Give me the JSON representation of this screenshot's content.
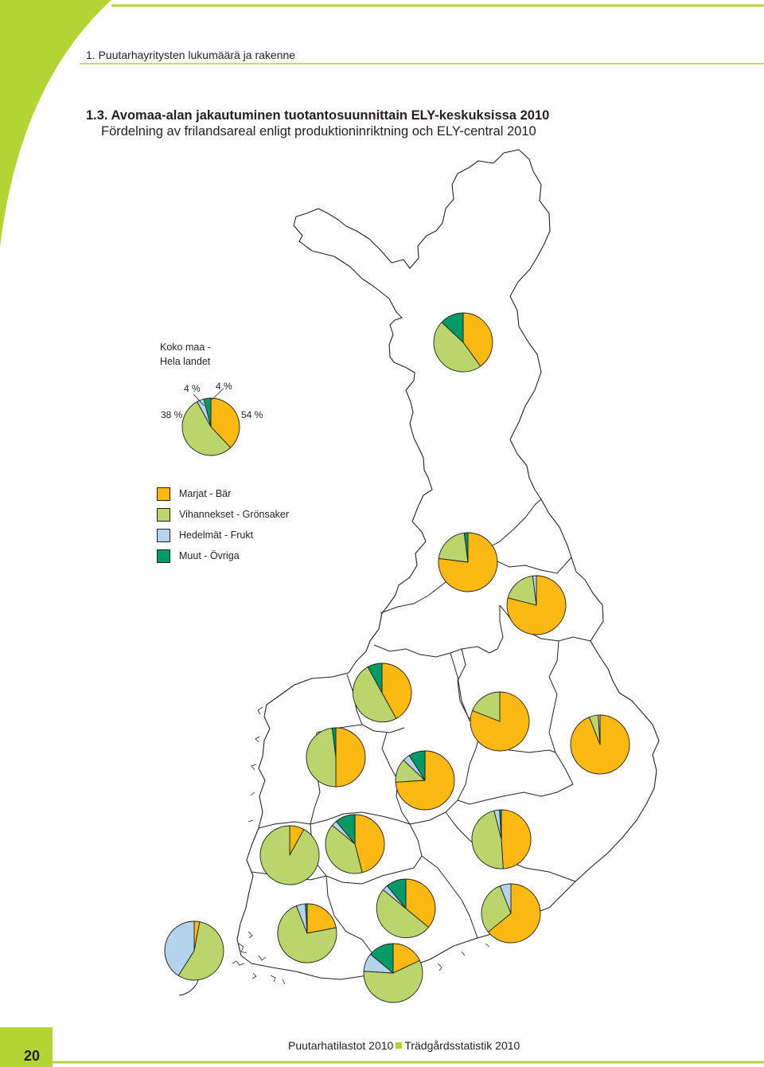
{
  "header": {
    "section": "1. Puutarhayritysten lukumäärä ja rakenne"
  },
  "title": {
    "fi": "1.3.  Avomaa-alan jakautuminen tuotantosuunnittain ELY-keskuksissa 2010",
    "sv": "Fördelning av frilandsareal enligt produktioninriktning och ELY-central 2010"
  },
  "colors": {
    "accent": "#b4d335",
    "berries": "#fdb913",
    "vegetables": "#b9d56b",
    "fruit": "#b3d4ec",
    "other": "#009a67",
    "map_line": "#231f20"
  },
  "legend": [
    {
      "label": "Marjat - Bär",
      "key": "berries"
    },
    {
      "label": "Vihannekset - Grönsaker",
      "key": "vegetables"
    },
    {
      "label": "Hedelmät - Frukt",
      "key": "fruit"
    },
    {
      "label": "Muut - Övriga",
      "key": "other"
    }
  ],
  "national": {
    "label_1": "Koko maa -",
    "label_2": "Hela landet",
    "pct_fruit": "4 %",
    "pct_other": "4 %",
    "pct_berries": "38 %",
    "pct_vegetables": "54 %"
  },
  "chart_data": {
    "type": "pie",
    "title": "1.3.  Avomaa-alan jakautuminen tuotantosuunnittain ELY-keskuksissa 2010",
    "categories": [
      "Marjat - Bär",
      "Vihannekset - Grönsaker",
      "Hedelmät - Frukt",
      "Muut - Övriga"
    ],
    "national_share_percent": {
      "Marjat - Bär": 38,
      "Vihannekset - Grönsaker": 54,
      "Hedelmät - Frukt": 4,
      "Muut - Övriga": 4
    },
    "regional_pies": [
      {
        "location": "Lappi",
        "shares": [
          40,
          47,
          0,
          13
        ]
      },
      {
        "location": "Kainuu",
        "shares": [
          77,
          21,
          0,
          2
        ]
      },
      {
        "location": "Pohjois-Pohjanmaa",
        "shares": [
          79,
          19,
          2,
          0
        ]
      },
      {
        "location": "Etelä-Pohjanmaa",
        "shares": [
          42,
          50,
          0,
          8
        ]
      },
      {
        "location": "Pohjois-Savo",
        "shares": [
          81,
          19,
          0,
          0
        ]
      },
      {
        "location": "Pohjois-Karjala",
        "shares": [
          94,
          5,
          1,
          0
        ]
      },
      {
        "location": "Pohjanmaa",
        "shares": [
          50,
          48,
          0,
          2
        ]
      },
      {
        "location": "Keski-Suomi",
        "shares": [
          74,
          13,
          4,
          9
        ]
      },
      {
        "location": "Pirkanmaa",
        "shares": [
          46,
          40,
          3,
          11
        ]
      },
      {
        "location": "Satakunta",
        "shares": [
          8,
          92,
          0,
          0
        ]
      },
      {
        "location": "Etelä-Savo",
        "shares": [
          49,
          47,
          3,
          1
        ]
      },
      {
        "location": "Häme",
        "shares": [
          36,
          50,
          3,
          11
        ]
      },
      {
        "location": "Varsinais-Suomi",
        "shares": [
          22,
          72,
          5,
          1
        ]
      },
      {
        "location": "Kaakkois-Suomi",
        "shares": [
          64,
          30,
          6,
          0
        ]
      },
      {
        "location": "Uusimaa",
        "shares": [
          18,
          58,
          10,
          14
        ]
      },
      {
        "location": "Ahvenanmaa",
        "shares": [
          3,
          56,
          41,
          0
        ]
      }
    ]
  },
  "footer": {
    "page_number": "20",
    "publication_fi": "Puutarhatilastot 2010",
    "publication_sv": "Trädgårdsstatistik 2010"
  }
}
